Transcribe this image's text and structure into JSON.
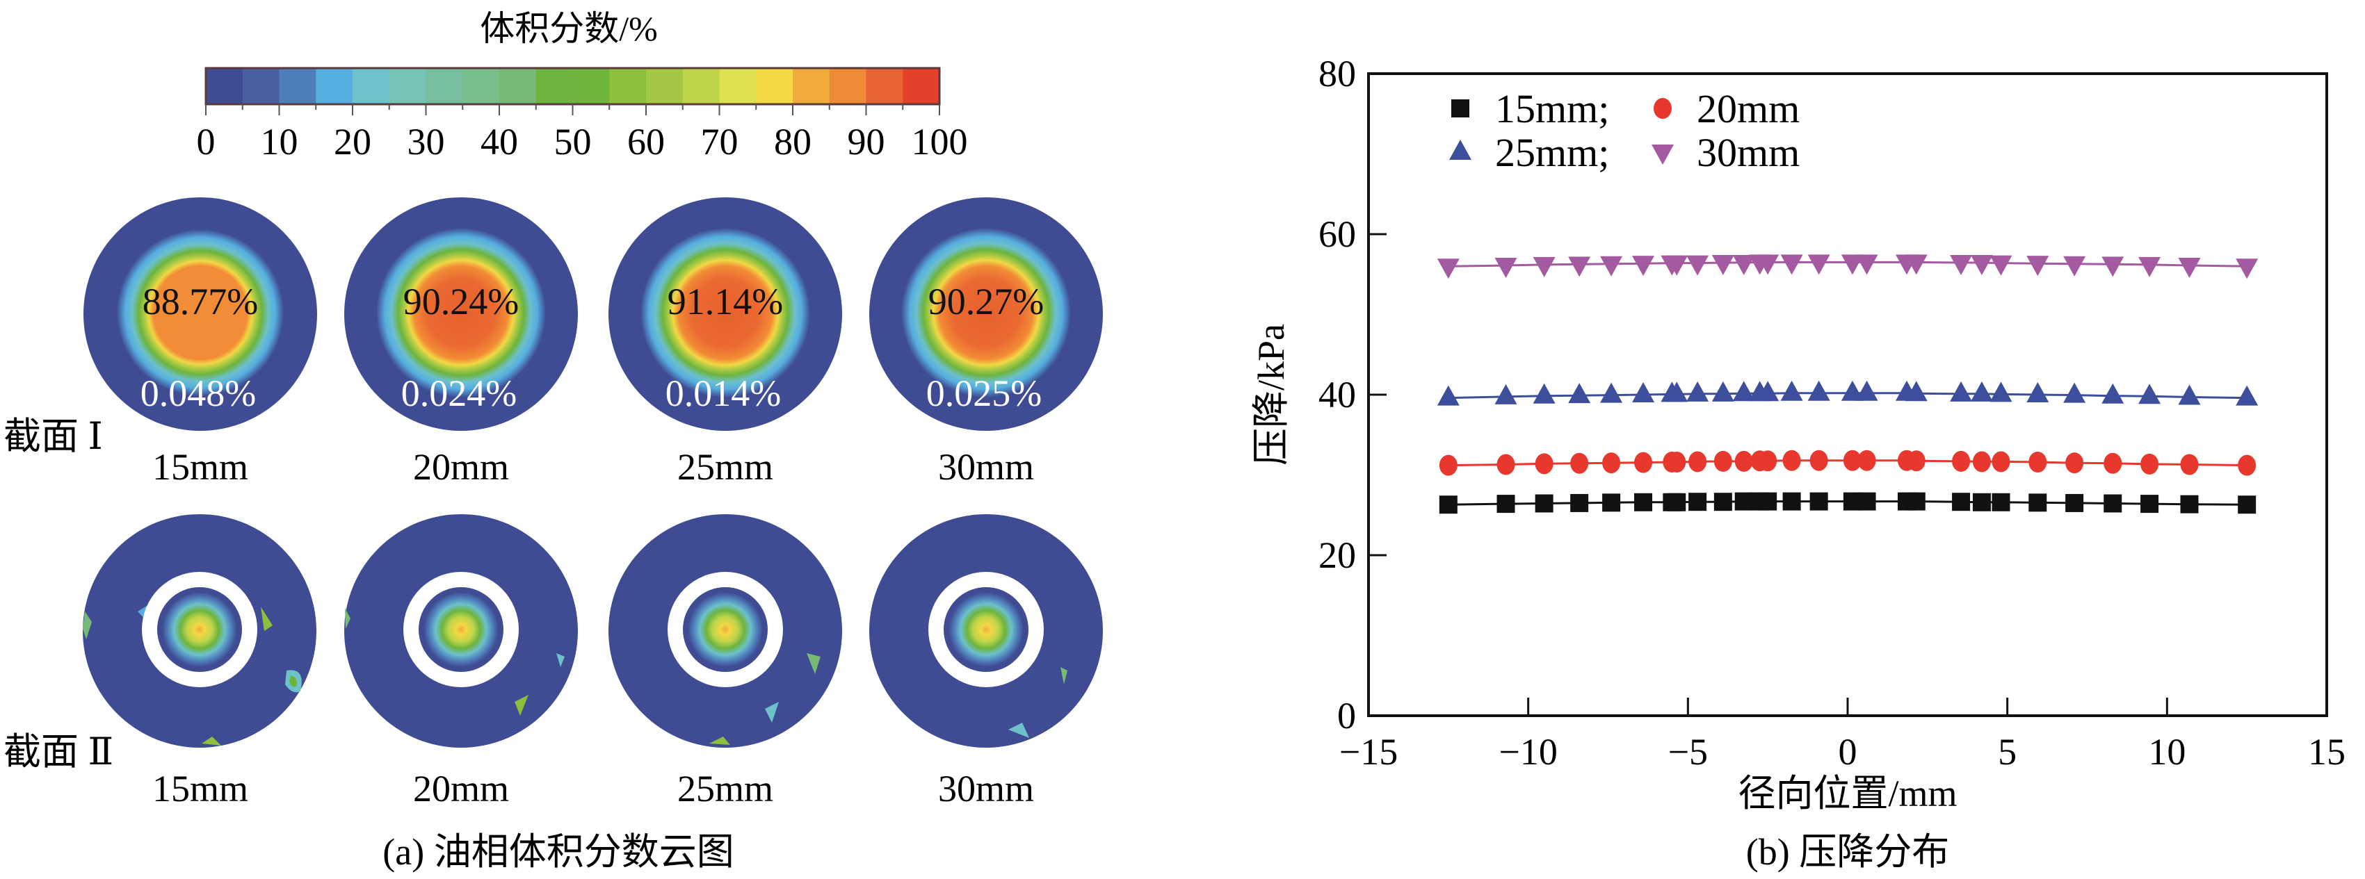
{
  "panel_a": {
    "colorbar": {
      "title": "体积分数/%",
      "tick_labels": [
        "0",
        "10",
        "20",
        "30",
        "40",
        "50",
        "60",
        "70",
        "80",
        "90",
        "100"
      ],
      "range": [
        0,
        100
      ],
      "band_colors": [
        "#3f4c94",
        "#4a5ea2",
        "#4f7fbb",
        "#56ade0",
        "#6cc1cb",
        "#76c3b8",
        "#77be9e",
        "#78bd8c",
        "#77ba76",
        "#6db43e",
        "#6fb43c",
        "#8cbf3c",
        "#a4c843",
        "#bed44a",
        "#dde04f",
        "#f2d844",
        "#f1aa3c",
        "#ef8a36",
        "#e86533",
        "#e4412d"
      ]
    },
    "section_labels": [
      "截面 Ⅰ",
      "截面 Ⅱ"
    ],
    "section1": [
      {
        "size": "15mm",
        "center_value": "88.77%",
        "edge_value": "0.048%",
        "core_color": "#f28c36"
      },
      {
        "size": "20mm",
        "center_value": "90.24%",
        "edge_value": "0.024%",
        "core_color": "#ea6a31"
      },
      {
        "size": "25mm",
        "center_value": "91.14%",
        "edge_value": "0.014%",
        "core_color": "#e8602f"
      },
      {
        "size": "30mm",
        "center_value": "90.27%",
        "edge_value": "0.025%",
        "core_color": "#ea6a31"
      }
    ],
    "section2": [
      {
        "size": "15mm"
      },
      {
        "size": "20mm"
      },
      {
        "size": "25mm"
      },
      {
        "size": "30mm"
      }
    ],
    "caption": "(a) 油相体积分数云图"
  },
  "chart_data": {
    "type": "scatter",
    "title": "",
    "caption": "(b) 压降分布",
    "xlabel": "径向位置/mm",
    "ylabel": "压降/kPa",
    "xlim": [
      -15,
      15
    ],
    "ylim": [
      0,
      80
    ],
    "xticks": [
      -15,
      -10,
      -5,
      0,
      5,
      10,
      15
    ],
    "yticks": [
      0,
      20,
      40,
      60,
      80
    ],
    "xtick_labels": [
      "−15",
      "−10",
      "−5",
      "0",
      "5",
      "10",
      "15"
    ],
    "ytick_labels": [
      "0",
      "20",
      "40",
      "60",
      "80"
    ],
    "grid": false,
    "legend_position": "top-left",
    "legend_labels": [
      "15mm;",
      "20mm",
      "25mm;",
      "30mm"
    ],
    "x": [
      -12.5,
      -10.7,
      -9.5,
      -8.4,
      -7.4,
      -6.4,
      -5.5,
      -5.35,
      -4.7,
      -3.9,
      -3.25,
      -2.75,
      -2.5,
      -1.75,
      -0.9,
      0.15,
      0.6,
      1.85,
      2.15,
      3.55,
      4.2,
      4.8,
      5.95,
      7.1,
      8.3,
      9.45,
      10.7,
      12.5
    ],
    "series": [
      {
        "name": "15mm",
        "marker": "square",
        "color": "#111111",
        "values": [
          26.3,
          26.4,
          26.45,
          26.5,
          26.55,
          26.6,
          26.6,
          26.6,
          26.65,
          26.65,
          26.7,
          26.7,
          26.7,
          26.7,
          26.7,
          26.7,
          26.7,
          26.7,
          26.7,
          26.65,
          26.6,
          26.6,
          26.55,
          26.5,
          26.45,
          26.4,
          26.35,
          26.3
        ]
      },
      {
        "name": "20mm",
        "marker": "circle",
        "color": "#e8382d",
        "values": [
          31.2,
          31.3,
          31.4,
          31.45,
          31.5,
          31.55,
          31.6,
          31.6,
          31.65,
          31.7,
          31.7,
          31.75,
          31.75,
          31.8,
          31.8,
          31.8,
          31.8,
          31.8,
          31.75,
          31.7,
          31.65,
          31.65,
          31.6,
          31.5,
          31.45,
          31.35,
          31.3,
          31.2
        ]
      },
      {
        "name": "25mm",
        "marker": "triangle-up",
        "color": "#3d4f9c",
        "values": [
          39.6,
          39.75,
          39.85,
          39.9,
          39.95,
          40.0,
          40.05,
          40.05,
          40.1,
          40.1,
          40.15,
          40.15,
          40.15,
          40.2,
          40.2,
          40.2,
          40.2,
          40.2,
          40.15,
          40.1,
          40.1,
          40.05,
          40.0,
          39.95,
          39.85,
          39.8,
          39.7,
          39.6
        ]
      },
      {
        "name": "30mm",
        "marker": "triangle-down",
        "color": "#a45aa0",
        "values": [
          56.0,
          56.1,
          56.2,
          56.25,
          56.3,
          56.35,
          56.4,
          56.4,
          56.4,
          56.45,
          56.45,
          56.5,
          56.5,
          56.5,
          56.5,
          56.5,
          56.5,
          56.5,
          56.5,
          56.45,
          56.45,
          56.4,
          56.35,
          56.3,
          56.25,
          56.2,
          56.1,
          56.0
        ]
      }
    ]
  }
}
